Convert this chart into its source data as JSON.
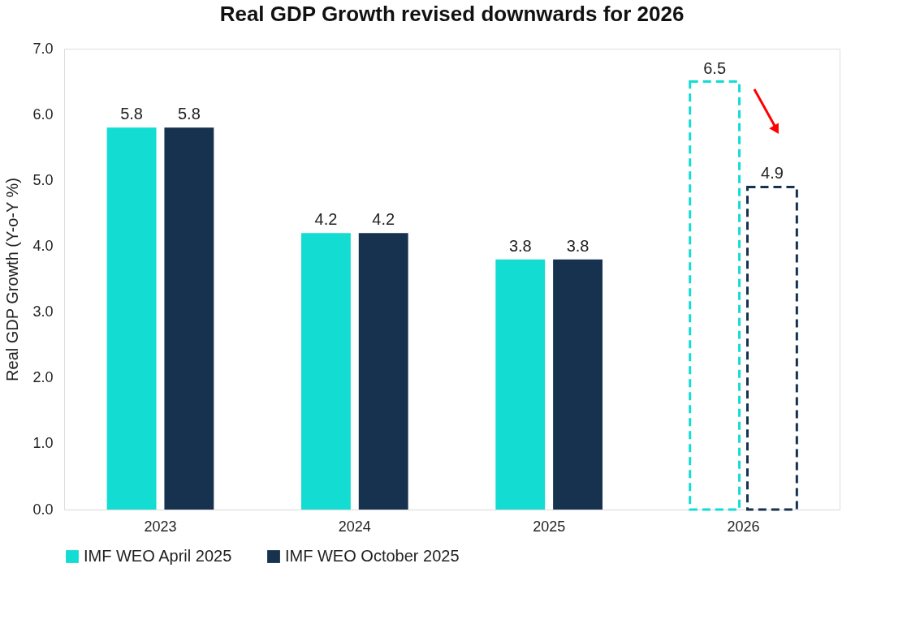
{
  "chart_data": {
    "type": "bar",
    "title": "Real GDP Growth revised downwards for 2026",
    "ylabel": "Real GDP Growth (Y-o-Y %)",
    "categories": [
      "2023",
      "2024",
      "2025",
      "2026"
    ],
    "series": [
      {
        "name": "IMF WEO April 2025",
        "color": "#13dcd2",
        "values": [
          5.8,
          4.2,
          3.8,
          6.5
        ],
        "line_style": [
          "solid",
          "solid",
          "solid",
          "dashed"
        ]
      },
      {
        "name": "IMF WEO October 2025",
        "color": "#16324f",
        "values": [
          5.8,
          4.2,
          3.8,
          4.9
        ],
        "line_style": [
          "solid",
          "solid",
          "solid",
          "dashed"
        ]
      }
    ],
    "ylim": [
      0,
      7
    ],
    "yticks": [
      {
        "value": 0,
        "label": "0.0"
      },
      {
        "value": 1,
        "label": "1.0"
      },
      {
        "value": 2,
        "label": "2.0"
      },
      {
        "value": 3,
        "label": "3.0"
      },
      {
        "value": 4,
        "label": "4.0"
      },
      {
        "value": 5,
        "label": "5.0"
      },
      {
        "value": 6,
        "label": "6.0"
      },
      {
        "value": 7,
        "label": "7.0"
      }
    ],
    "grid": false,
    "legend": "bottom",
    "data_labels": true
  }
}
